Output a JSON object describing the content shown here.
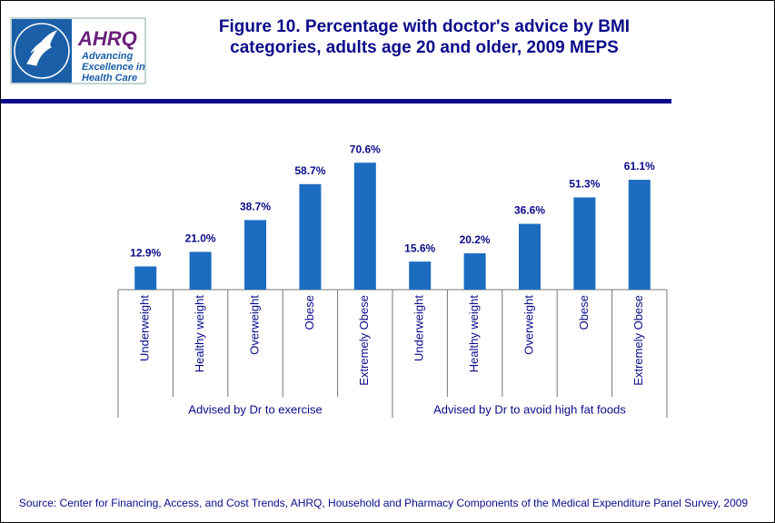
{
  "header": {
    "logo_name": "AHRQ",
    "logo_tagline": [
      "Advancing",
      "Excellence in",
      "Health Care"
    ]
  },
  "chart_data": {
    "type": "bar",
    "title": [
      "Figure 10. Percentage with doctor's advice by BMI",
      "categories, adults age 20 and older, 2009 MEPS"
    ],
    "color": "#1c6cc0",
    "groups": [
      {
        "name": "Advised by Dr to exercise",
        "categories": [
          "Underweight",
          "Healthy weight",
          "Overweight",
          "Obese",
          "Extremely Obese"
        ],
        "values": [
          12.9,
          21.0,
          38.7,
          58.7,
          70.6
        ],
        "value_labels": [
          "12.9%",
          "21.0%",
          "38.7%",
          "58.7%",
          "70.6%"
        ]
      },
      {
        "name": "Advised by Dr to avoid high fat foods",
        "categories": [
          "Underweight",
          "Healthy weight",
          "Overweight",
          "Obese",
          "Extremely Obese"
        ],
        "values": [
          15.6,
          20.2,
          36.6,
          51.3,
          61.1
        ],
        "value_labels": [
          "15.6%",
          "20.2%",
          "36.6%",
          "51.3%",
          "61.1%"
        ]
      }
    ],
    "source": "Source: Center for Financing, Access, and Cost Trends, AHRQ, Household and Pharmacy Components of the Medical Expenditure Panel Survey,  2009"
  }
}
